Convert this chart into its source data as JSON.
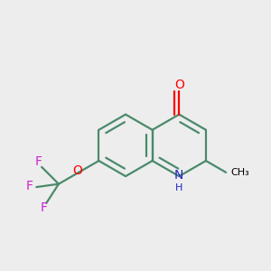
{
  "background_color": "#ededee",
  "bond_color": "#4a8a6a",
  "bond_width": 1.6,
  "atom_colors": {
    "O": "#ff0000",
    "N": "#2222cc",
    "F": "#cc22cc",
    "C": "#000000"
  },
  "font_size_atom": 10,
  "font_size_H": 8,
  "figsize": [
    3.0,
    3.0
  ],
  "dpi": 100
}
